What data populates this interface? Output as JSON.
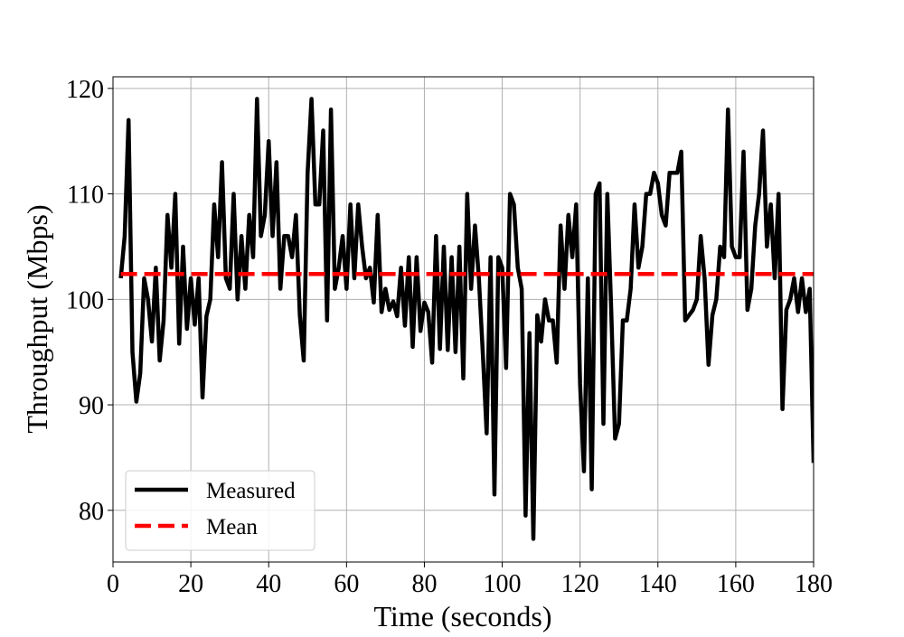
{
  "chart_data": {
    "type": "line",
    "xlabel": "Time (seconds)",
    "ylabel": "Throughput (Mbps)",
    "xlim": [
      0,
      180
    ],
    "ylim": [
      75.1,
      121.1
    ],
    "xticks": [
      0,
      20,
      40,
      60,
      80,
      100,
      120,
      140,
      160,
      180
    ],
    "yticks": [
      80,
      90,
      100,
      110,
      120
    ],
    "grid": true,
    "legend": "lower left",
    "series": [
      {
        "name": "Measured",
        "color": "#000000",
        "linestyle": "solid",
        "x": [
          2,
          3,
          4,
          5,
          6,
          7,
          8,
          9,
          10,
          11,
          12,
          13,
          14,
          15,
          16,
          17,
          18,
          19,
          20,
          21,
          22,
          23,
          24,
          25,
          26,
          27,
          28,
          29,
          30,
          31,
          32,
          33,
          34,
          35,
          36,
          37,
          38,
          39,
          40,
          41,
          42,
          43,
          44,
          45,
          46,
          47,
          48,
          49,
          50,
          51,
          52,
          53,
          54,
          55,
          56,
          57,
          58,
          59,
          60,
          61,
          62,
          63,
          64,
          65,
          66,
          67,
          68,
          69,
          70,
          71,
          72,
          73,
          74,
          75,
          76,
          77,
          78,
          79,
          80,
          81,
          82,
          83,
          84,
          85,
          86,
          87,
          88,
          89,
          90,
          91,
          92,
          93,
          94,
          95,
          96,
          97,
          98,
          99,
          100,
          101,
          102,
          103,
          104,
          105,
          106,
          107,
          108,
          109,
          110,
          111,
          112,
          113,
          114,
          115,
          116,
          117,
          118,
          119,
          120,
          121,
          122,
          123,
          124,
          125,
          126,
          127,
          128,
          129,
          130,
          131,
          132,
          133,
          134,
          135,
          136,
          137,
          138,
          139,
          140,
          141,
          142,
          143,
          144,
          145,
          146,
          147,
          148,
          149,
          150,
          151,
          152,
          153,
          154,
          155,
          156,
          157,
          158,
          159,
          160,
          161,
          162,
          163,
          164,
          165,
          166,
          167,
          168,
          169,
          170,
          171,
          172,
          173,
          174,
          175,
          176,
          177,
          178,
          179,
          180
        ],
        "values": [
          102,
          106,
          117,
          95,
          90.3,
          93,
          102,
          100,
          96,
          103,
          94.2,
          98,
          108,
          103,
          110,
          95.8,
          105,
          97.2,
          102,
          97.6,
          102,
          90.7,
          98.4,
          100,
          109,
          104,
          113,
          102,
          101,
          110,
          100,
          106,
          101,
          108,
          104,
          119,
          106,
          108,
          115,
          106,
          113,
          101,
          106,
          106,
          104,
          108,
          98.5,
          94.2,
          112,
          119,
          109,
          109,
          116,
          98,
          118,
          101,
          103,
          106,
          101,
          109,
          102,
          109,
          105,
          102,
          103,
          99.7,
          108,
          98.8,
          101,
          99,
          99.8,
          98.4,
          103,
          97.5,
          104,
          95.5,
          104,
          97,
          99.7,
          98.8,
          94,
          106,
          95.3,
          105,
          95.2,
          104,
          95,
          105,
          92.5,
          110,
          101,
          107,
          102,
          95,
          87.3,
          104,
          81.5,
          104,
          103,
          93.5,
          110,
          109,
          103,
          101,
          79.5,
          96.8,
          77.3,
          98.5,
          96,
          100,
          98,
          98,
          94,
          107,
          101,
          108,
          104,
          109,
          92,
          83.7,
          102,
          82,
          110,
          111,
          88.2,
          110,
          99,
          86.8,
          88.2,
          98,
          98,
          101,
          109,
          103,
          105,
          110,
          110,
          112,
          111,
          108,
          107,
          112,
          112,
          112,
          114,
          98,
          98.5,
          99,
          100,
          106,
          102,
          93.8,
          98.5,
          100,
          105,
          104,
          118,
          105,
          104,
          104,
          114,
          99,
          101,
          107,
          110,
          116,
          105,
          109,
          102,
          110,
          89.6,
          99,
          100,
          102,
          98.8,
          102,
          98.8,
          101,
          84.5
        ]
      },
      {
        "name": "Mean",
        "color": "#ff0000",
        "linestyle": "dashed",
        "x": [
          2,
          180
        ],
        "values": [
          102.4,
          102.4
        ]
      }
    ]
  }
}
